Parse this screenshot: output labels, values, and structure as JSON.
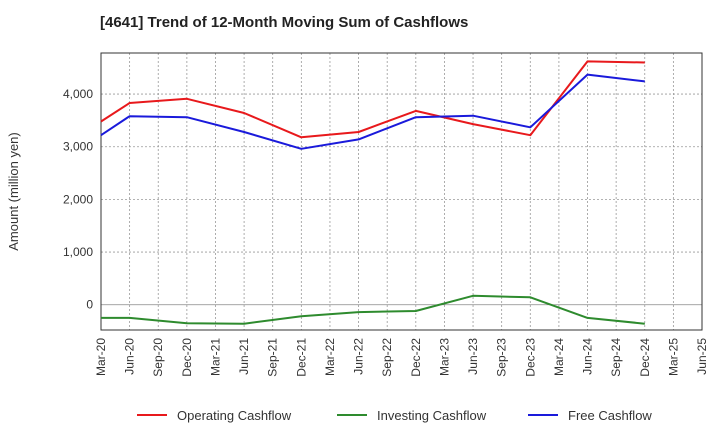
{
  "title": "[4641]  Trend of 12-Month Moving Sum of Cashflows",
  "chart_data": {
    "type": "line",
    "title": "[4641]  Trend of 12-Month Moving Sum of Cashflows",
    "xlabel": "",
    "ylabel": "Amount (million yen)",
    "ylim": [
      -480,
      4780
    ],
    "yticks": [
      0,
      1000,
      2000,
      3000,
      4000
    ],
    "ytick_labels": [
      "0",
      "1,000",
      "2,000",
      "3,000",
      "4,000"
    ],
    "categories": [
      "Mar-20",
      "Jun-20",
      "Sep-20",
      "Dec-20",
      "Mar-21",
      "Jun-21",
      "Sep-21",
      "Dec-21",
      "Mar-22",
      "Jun-22",
      "Sep-22",
      "Dec-22",
      "Mar-23",
      "Jun-23",
      "Sep-23",
      "Dec-23",
      "Mar-24",
      "Jun-24",
      "Sep-24",
      "Dec-24",
      "Mar-25",
      "Jun-25"
    ],
    "grid": true,
    "legend_position": "bottom",
    "series": [
      {
        "name": "Operating Cashflow",
        "color": "#e8191c",
        "values": [
          3480,
          3830,
          null,
          3910,
          null,
          3640,
          null,
          3180,
          null,
          3280,
          null,
          3680,
          null,
          3430,
          null,
          3220,
          null,
          4620,
          null,
          4600,
          null,
          null
        ]
      },
      {
        "name": "Investing Cashflow",
        "color": "#2e8b2e",
        "values": [
          -250,
          -250,
          null,
          -350,
          null,
          -360,
          null,
          -220,
          null,
          -140,
          null,
          -120,
          null,
          170,
          null,
          140,
          null,
          -250,
          null,
          -360,
          null,
          null
        ]
      },
      {
        "name": "Free Cashflow",
        "color": "#1a1adb",
        "values": [
          3220,
          3580,
          null,
          3560,
          null,
          3280,
          null,
          2960,
          null,
          3140,
          null,
          3560,
          null,
          3590,
          null,
          3370,
          null,
          4370,
          null,
          4240,
          null,
          null
        ]
      }
    ]
  }
}
